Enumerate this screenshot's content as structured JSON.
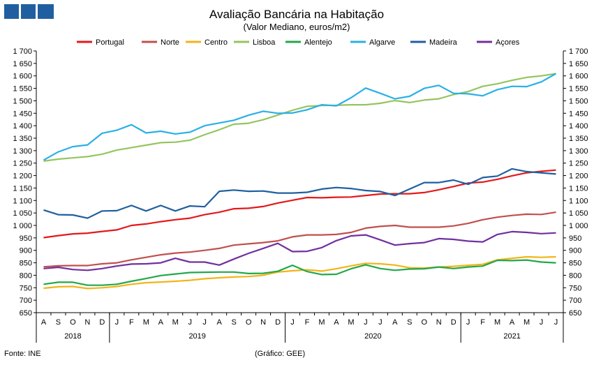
{
  "chart_data": {
    "type": "line",
    "title": "Avaliação Bancária na Habitação",
    "subtitle": "(Valor Mediano, euros/m2)",
    "source": "Fonte: INE",
    "credit": "(Gráfico: GEE)",
    "ylim": [
      650,
      1700
    ],
    "yticks": [
      "650",
      "700",
      "750",
      "800",
      "850",
      "900",
      "950",
      "1 000",
      "1 050",
      "1 100",
      "1 150",
      "1 200",
      "1 250",
      "1 300",
      "1 350",
      "1 400",
      "1 450",
      "1 500",
      "1 550",
      "1 600",
      "1 650",
      "1 700"
    ],
    "months": [
      "A",
      "S",
      "O",
      "N",
      "D",
      "J",
      "F",
      "M",
      "A",
      "M",
      "J",
      "J",
      "A",
      "S",
      "O",
      "N",
      "D",
      "J",
      "F",
      "M",
      "A",
      "M",
      "J",
      "J",
      "A",
      "S",
      "O",
      "N",
      "D",
      "J",
      "F",
      "M",
      "A",
      "M",
      "J",
      "J"
    ],
    "years": [
      {
        "label": "2018",
        "start": 0,
        "end": 4
      },
      {
        "label": "2019",
        "start": 5,
        "end": 16
      },
      {
        "label": "2020",
        "start": 17,
        "end": 28
      },
      {
        "label": "2021",
        "start": 29,
        "end": 35
      }
    ],
    "series": [
      {
        "name": "Portugal",
        "color": "#e3191b",
        "values": [
          951,
          959,
          966,
          969,
          976,
          982,
          1000,
          1006,
          1015,
          1023,
          1029,
          1043,
          1053,
          1067,
          1069,
          1076,
          1090,
          1101,
          1112,
          1111,
          1113,
          1114,
          1120,
          1126,
          1127,
          1127,
          1132,
          1143,
          1156,
          1170,
          1174,
          1185,
          1199,
          1211,
          1217,
          1222
        ]
      },
      {
        "name": "Norte",
        "color": "#c0504d",
        "values": [
          834,
          838,
          839,
          839,
          846,
          850,
          862,
          872,
          882,
          889,
          893,
          900,
          908,
          921,
          926,
          931,
          938,
          954,
          962,
          962,
          964,
          972,
          989,
          996,
          1000,
          993,
          993,
          993,
          998,
          1008,
          1023,
          1033,
          1040,
          1045,
          1044,
          1053
        ]
      },
      {
        "name": "Centro",
        "color": "#f2b418",
        "values": [
          748,
          754,
          755,
          747,
          750,
          755,
          764,
          770,
          773,
          776,
          780,
          786,
          790,
          793,
          795,
          800,
          813,
          818,
          822,
          817,
          826,
          838,
          848,
          846,
          841,
          830,
          829,
          833,
          836,
          840,
          844,
          862,
          868,
          874,
          872,
          874
        ]
      },
      {
        "name": "Lisboa",
        "color": "#95c55f",
        "values": [
          1258,
          1266,
          1271,
          1276,
          1286,
          1302,
          1312,
          1322,
          1332,
          1334,
          1342,
          1364,
          1384,
          1406,
          1410,
          1424,
          1443,
          1462,
          1478,
          1481,
          1482,
          1484,
          1484,
          1490,
          1501,
          1493,
          1503,
          1508,
          1525,
          1537,
          1558,
          1568,
          1582,
          1594,
          1600,
          1609
        ]
      },
      {
        "name": "Alentejo",
        "color": "#22a84a",
        "values": [
          764,
          772,
          772,
          760,
          760,
          764,
          776,
          787,
          799,
          805,
          811,
          812,
          813,
          813,
          807,
          808,
          816,
          840,
          815,
          803,
          804,
          826,
          842,
          827,
          820,
          825,
          826,
          833,
          827,
          833,
          837,
          860,
          859,
          861,
          853,
          850
        ]
      },
      {
        "name": "Algarve",
        "color": "#2ab0e6",
        "values": [
          1262,
          1295,
          1316,
          1323,
          1370,
          1382,
          1404,
          1371,
          1378,
          1367,
          1374,
          1400,
          1411,
          1422,
          1442,
          1458,
          1450,
          1451,
          1464,
          1484,
          1480,
          1512,
          1551,
          1530,
          1508,
          1518,
          1550,
          1562,
          1530,
          1528,
          1520,
          1545,
          1558,
          1557,
          1576,
          1609
        ]
      },
      {
        "name": "Madeira",
        "color": "#1f5fa0",
        "values": [
          1062,
          1043,
          1042,
          1029,
          1058,
          1059,
          1080,
          1058,
          1080,
          1058,
          1078,
          1075,
          1137,
          1142,
          1137,
          1138,
          1130,
          1130,
          1133,
          1146,
          1152,
          1148,
          1140,
          1136,
          1120,
          1146,
          1172,
          1172,
          1182,
          1165,
          1192,
          1198,
          1227,
          1216,
          1211,
          1206
        ]
      },
      {
        "name": "Açores",
        "color": "#7030a0",
        "values": [
          827,
          832,
          823,
          820,
          827,
          837,
          845,
          846,
          850,
          868,
          853,
          853,
          841,
          865,
          888,
          908,
          928,
          895,
          896,
          911,
          939,
          958,
          962,
          942,
          921,
          927,
          931,
          947,
          944,
          937,
          934,
          964,
          975,
          972,
          967,
          970
        ]
      }
    ]
  }
}
